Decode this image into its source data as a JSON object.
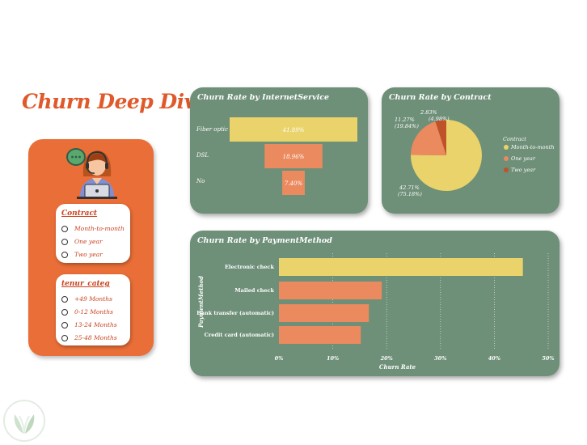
{
  "page_title": "Churn Deep Dive",
  "slicers": {
    "contract": {
      "title": "Contract",
      "options": [
        "Month-to-month",
        "One year",
        "Two year"
      ]
    },
    "tenure": {
      "title": "tenur_categ",
      "options": [
        "+49 Months",
        "0-12 Months",
        "13-24 Months",
        "25-48 Months"
      ]
    }
  },
  "colors": {
    "accent": "#e0592a",
    "panel": "#ea6e37",
    "card": "#6e8f78",
    "yellow": "#e9d36a",
    "salmon": "#ea8a5e",
    "brown": "#c0522a"
  },
  "chart_data": [
    {
      "type": "bar",
      "orientation": "funnel",
      "title": "Churn Rate by InternetService",
      "categories": [
        "Fiber optic",
        "DSL",
        "No"
      ],
      "values": [
        41.89,
        18.96,
        7.4
      ],
      "labels": [
        "41.89%",
        "18.96%",
        "7.40%"
      ]
    },
    {
      "type": "pie",
      "title": "Churn Rate by Contract",
      "legend_title": "Contract",
      "legend_position": "right",
      "slices": [
        {
          "name": "Month-to-month",
          "value": 42.71,
          "label1": "42.71%",
          "label2": "(75.18%)"
        },
        {
          "name": "One year",
          "value": 11.27,
          "label1": "11.27%",
          "label2": "(19.84%)"
        },
        {
          "name": "Two year",
          "value": 2.83,
          "label1": "2.83%",
          "label2": "(4.98%)"
        }
      ]
    },
    {
      "type": "bar",
      "orientation": "horizontal",
      "title": "Churn Rate by PaymentMethod",
      "ylabel": "PaymentMethod",
      "xlabel": "Churn Rate",
      "categories": [
        "Electronic check",
        "Mailed check",
        "Bank transfer (automatic)",
        "Credit card (automatic)"
      ],
      "values": [
        45.3,
        19.1,
        16.7,
        15.2
      ],
      "xlim": [
        0,
        50
      ],
      "xticks": [
        "0%",
        "10%",
        "20%",
        "30%",
        "40%",
        "50%"
      ],
      "grid": true
    }
  ]
}
